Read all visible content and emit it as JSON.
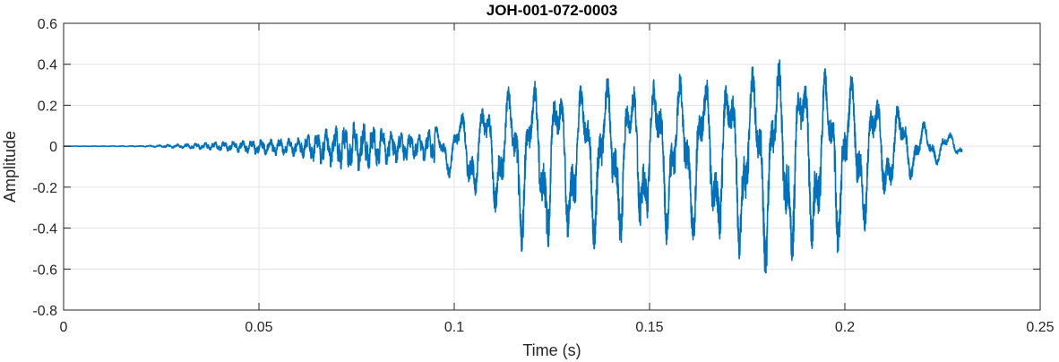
{
  "chart_data": {
    "type": "line",
    "title": "JOH-001-072-0003",
    "xlabel": "Time (s)",
    "ylabel": "Amplitude",
    "xlim": [
      0,
      0.25
    ],
    "ylim": [
      -0.8,
      0.6
    ],
    "xticks": [
      0,
      0.05,
      0.1,
      0.15,
      0.2,
      0.25
    ],
    "xtick_labels": [
      "0",
      "0.05",
      "0.1",
      "0.15",
      "0.2",
      "0.25"
    ],
    "yticks": [
      -0.8,
      -0.6,
      -0.4,
      -0.2,
      0,
      0.2,
      0.4,
      0.6
    ],
    "ytick_labels": [
      "-0.8",
      "-0.6",
      "-0.4",
      "-0.2",
      "0",
      "0.2",
      "0.4",
      "0.6"
    ],
    "grid": true,
    "box": true,
    "series": [
      {
        "color": "#0072BD",
        "signal_end": 0.23,
        "envelope": [
          {
            "t": 0.0,
            "max": 0.0,
            "min": 0.0
          },
          {
            "t": 0.02,
            "max": 0.002,
            "min": -0.002
          },
          {
            "t": 0.03,
            "max": 0.01,
            "min": -0.01
          },
          {
            "t": 0.04,
            "max": 0.02,
            "min": -0.02
          },
          {
            "t": 0.05,
            "max": 0.03,
            "min": -0.04
          },
          {
            "t": 0.06,
            "max": 0.04,
            "min": -0.05
          },
          {
            "t": 0.07,
            "max": 0.1,
            "min": -0.11
          },
          {
            "t": 0.075,
            "max": 0.12,
            "min": -0.12
          },
          {
            "t": 0.08,
            "max": 0.09,
            "min": -0.1
          },
          {
            "t": 0.09,
            "max": 0.05,
            "min": -0.06
          },
          {
            "t": 0.095,
            "max": 0.09,
            "min": -0.08
          },
          {
            "t": 0.1,
            "max": 0.14,
            "min": -0.18
          },
          {
            "t": 0.105,
            "max": 0.22,
            "min": -0.28
          },
          {
            "t": 0.11,
            "max": 0.25,
            "min": -0.32
          },
          {
            "t": 0.115,
            "max": 0.3,
            "min": -0.48
          },
          {
            "t": 0.12,
            "max": 0.32,
            "min": -0.55
          },
          {
            "t": 0.13,
            "max": 0.3,
            "min": -0.5
          },
          {
            "t": 0.14,
            "max": 0.33,
            "min": -0.5
          },
          {
            "t": 0.15,
            "max": 0.35,
            "min": -0.48
          },
          {
            "t": 0.16,
            "max": 0.35,
            "min": -0.48
          },
          {
            "t": 0.17,
            "max": 0.36,
            "min": -0.55
          },
          {
            "t": 0.18,
            "max": 0.4,
            "min": -0.62
          },
          {
            "t": 0.185,
            "max": 0.45,
            "min": -0.64
          },
          {
            "t": 0.19,
            "max": 0.4,
            "min": -0.6
          },
          {
            "t": 0.2,
            "max": 0.36,
            "min": -0.5
          },
          {
            "t": 0.205,
            "max": 0.3,
            "min": -0.42
          },
          {
            "t": 0.21,
            "max": 0.25,
            "min": -0.3
          },
          {
            "t": 0.215,
            "max": 0.2,
            "min": -0.2
          },
          {
            "t": 0.22,
            "max": 0.12,
            "min": -0.12
          },
          {
            "t": 0.225,
            "max": 0.08,
            "min": -0.08
          },
          {
            "t": 0.23,
            "max": 0.05,
            "min": -0.05
          }
        ]
      }
    ]
  }
}
